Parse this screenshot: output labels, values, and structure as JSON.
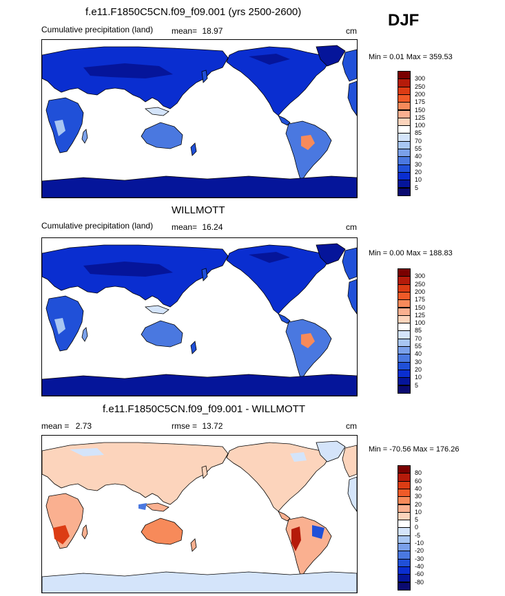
{
  "season": "DJF",
  "panels": [
    {
      "title": "f.e11.F1850C5CN.f09_f09.001 (yrs 2500-2600)",
      "left_label": "Cumulative precipitation (land)",
      "mean_label": "mean=",
      "mean_value": "18.97",
      "units": "cm",
      "min_max": "Min =   0.01 Max = 359.53",
      "scale_labels": [
        "300",
        "250",
        "200",
        "175",
        "150",
        "125",
        "100",
        "85",
        "70",
        "55",
        "40",
        "30",
        "20",
        "10",
        "5"
      ],
      "scale_colors": [
        "#7a0000",
        "#b51b0a",
        "#dc3c14",
        "#f05a28",
        "#f78a5a",
        "#fab090",
        "#fcd4bc",
        "#ffffff",
        "#d4e4fa",
        "#a8c6f2",
        "#7aa0ea",
        "#4a78e0",
        "#2050d8",
        "#0a2ed0",
        "#05159a",
        "#0a0a70"
      ],
      "land_style": "wet"
    },
    {
      "title": "WILLMOTT",
      "left_label": "Cumulative precipitation (land)",
      "mean_label": "mean=",
      "mean_value": "16.24",
      "units": "cm",
      "min_max": "Min =   0.00 Max = 188.83",
      "scale_labels": [
        "300",
        "250",
        "200",
        "175",
        "150",
        "125",
        "100",
        "85",
        "70",
        "55",
        "40",
        "30",
        "20",
        "10",
        "5"
      ],
      "scale_colors": [
        "#7a0000",
        "#b51b0a",
        "#dc3c14",
        "#f05a28",
        "#f78a5a",
        "#fab090",
        "#fcd4bc",
        "#ffffff",
        "#d4e4fa",
        "#a8c6f2",
        "#7aa0ea",
        "#4a78e0",
        "#2050d8",
        "#0a2ed0",
        "#05159a",
        "#0a0a70"
      ],
      "land_style": "wet"
    },
    {
      "title": "f.e11.F1850C5CN.f09_f09.001 - WILLMOTT",
      "left_label": "mean =",
      "left_value": "2.73",
      "mean_label": "rmse =",
      "mean_value": "13.72",
      "units": "cm",
      "min_max": "Min = -70.56 Max = 176.26",
      "scale_labels": [
        "80",
        "60",
        "40",
        "30",
        "20",
        "10",
        "5",
        "0",
        "-5",
        "-10",
        "-20",
        "-30",
        "-40",
        "-60",
        "-80"
      ],
      "scale_colors": [
        "#7a0000",
        "#b51b0a",
        "#dc3c14",
        "#f05a28",
        "#f78a5a",
        "#fab090",
        "#fcd4bc",
        "#ffffff",
        "#d4e4fa",
        "#a8c6f2",
        "#7aa0ea",
        "#4a78e0",
        "#2050d8",
        "#0a2ed0",
        "#05159a",
        "#0a0a70"
      ],
      "land_style": "diff"
    }
  ]
}
